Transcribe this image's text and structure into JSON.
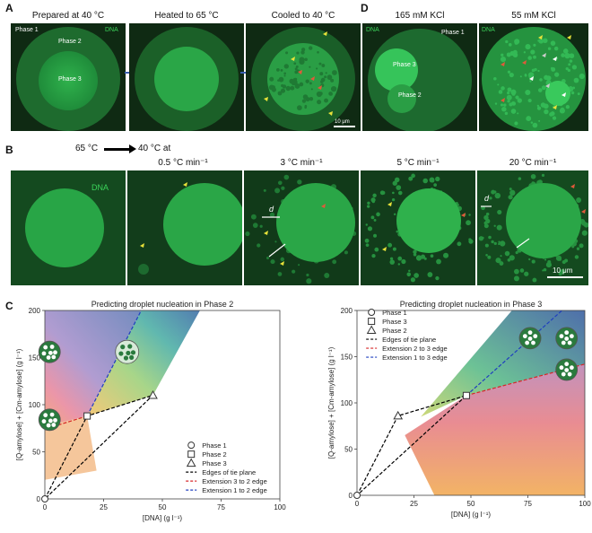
{
  "panelA": {
    "label": "A",
    "titles": [
      "Prepared at 40 °C",
      "Heated to 65 °C",
      "Cooled to 40 °C"
    ],
    "phase_labels": [
      "Phase 1",
      "Phase 2",
      "Phase 3"
    ],
    "dna": "DNA",
    "scale": "10 μm"
  },
  "panelD": {
    "label": "D",
    "titles": [
      "165 mM KCl",
      "55 mM KCl"
    ],
    "dna": "DNA",
    "phase_labels": [
      "Phase 1",
      "Phase 3",
      "Phase 2"
    ]
  },
  "panelB": {
    "label": "B",
    "ramp_from": "65 °C",
    "ramp_to": "40 °C at",
    "rates": [
      "0.5 °C min⁻¹",
      "3 °C min⁻¹",
      "5 °C min⁻¹",
      "20 °C min⁻¹"
    ],
    "dna": "DNA",
    "d": "d",
    "scale": "10 μm"
  },
  "panelC": {
    "label": "C",
    "chart_data": [
      {
        "type": "scatter",
        "title": "Predicting droplet nucleation in Phase 2",
        "xlabel": "[DNA] (g l⁻¹)",
        "ylabel": "[Q-amylose] + [Cm-amylose] (g l⁻¹)",
        "xlim": [
          0,
          100
        ],
        "ylim": [
          0,
          200
        ],
        "xticks": [
          0,
          25,
          50,
          75,
          100
        ],
        "yticks": [
          0,
          50,
          100,
          150,
          200
        ],
        "points": [
          {
            "name": "Phase 1",
            "x": 0,
            "y": 0,
            "marker": "circle"
          },
          {
            "name": "Phase 2",
            "x": 18,
            "y": 88,
            "marker": "square"
          },
          {
            "name": "Phase 3",
            "x": 46,
            "y": 110,
            "marker": "triangle"
          }
        ],
        "lines": [
          {
            "name": "Edges of tie plane",
            "color": "#000000",
            "points": [
              [
                0,
                0
              ],
              [
                18,
                88
              ],
              [
                46,
                110
              ],
              [
                0,
                0
              ]
            ]
          },
          {
            "name": "Extension 3 to 2 edge",
            "color": "#d62728",
            "points": [
              [
                18,
                88
              ],
              [
                0,
                74
              ]
            ]
          },
          {
            "name": "Extension 1 to 2 edge",
            "color": "#1f3fbf",
            "points": [
              [
                18,
                88
              ],
              [
                41,
                200
              ]
            ]
          }
        ],
        "legend": [
          "Phase 1",
          "Phase 2",
          "Phase 3",
          "Edges of tie plane",
          "Extension 3 to 2 edge",
          "Extension 1 to 2 edge"
        ],
        "legend_position": "bottom-right"
      },
      {
        "type": "scatter",
        "title": "Predicting droplet nucleation in Phase 3",
        "xlabel": "[DNA] (g l⁻¹)",
        "ylabel": "[Q-amylose] + [Cm-amylose] (g l⁻¹)",
        "xlim": [
          0,
          100
        ],
        "ylim": [
          0,
          200
        ],
        "xticks": [
          0,
          25,
          50,
          75,
          100
        ],
        "yticks": [
          0,
          50,
          100,
          150,
          200
        ],
        "points": [
          {
            "name": "Phase 1",
            "x": 0,
            "y": 0,
            "marker": "circle"
          },
          {
            "name": "Phase 3",
            "x": 48,
            "y": 108,
            "marker": "square"
          },
          {
            "name": "Phase 2",
            "x": 18,
            "y": 86,
            "marker": "triangle"
          }
        ],
        "lines": [
          {
            "name": "Edges of tie plane",
            "color": "#000000",
            "points": [
              [
                0,
                0
              ],
              [
                18,
                86
              ],
              [
                48,
                108
              ],
              [
                0,
                0
              ]
            ]
          },
          {
            "name": "Extension 2 to 3 edge",
            "color": "#d62728",
            "points": [
              [
                48,
                108
              ],
              [
                100,
                142
              ]
            ]
          },
          {
            "name": "Extension 1 to 3 edge",
            "color": "#1f3fbf",
            "points": [
              [
                48,
                108
              ],
              [
                90,
                200
              ]
            ]
          }
        ],
        "legend": [
          "Phase 1",
          "Phase 3",
          "Phase 2",
          "Edges of tie plane",
          "Extension 2 to 3 edge",
          "Extension 1 to 3 edge"
        ],
        "legend_position": "top-left"
      }
    ]
  }
}
